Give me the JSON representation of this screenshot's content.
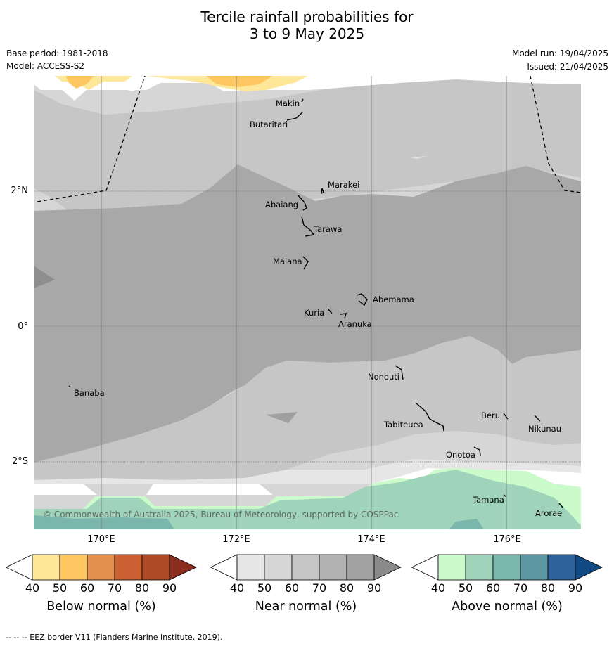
{
  "title_line1": "Tercile rainfall probabilities for",
  "title_line2": "3 to 9 May 2025",
  "base_period": "Base period: 1981-2018",
  "model": "Model: ACCESS-S2",
  "model_run": "Model run: 19/04/2025",
  "issued": "Issued: 21/04/2025",
  "copyright": "© Commonwealth of Australia 2025, Bureau of Meteorology, supported by COSPPac",
  "lat_labels": [
    "2°N",
    "0°",
    "2°S"
  ],
  "lon_labels": [
    "170°E",
    "172°E",
    "174°E",
    "176°E"
  ],
  "places": [
    "Makin",
    "Butaritari",
    "Marakei",
    "Abaiang",
    "Tarawa",
    "Maiana",
    "Abemama",
    "Kuria",
    "Aranuka",
    "Nonouti",
    "Banaba",
    "Tabiteuea",
    "Beru",
    "Nikunau",
    "Onotoa",
    "Tamana",
    "Arorae"
  ],
  "colorbars": {
    "below": {
      "label": "Below normal (%)",
      "ticks": [
        "40",
        "50",
        "60",
        "70",
        "80",
        "90"
      ],
      "colors": [
        "#ffffff",
        "#fee799",
        "#fec762",
        "#e2904c",
        "#cd6032",
        "#b04b27",
        "#8b2d1e"
      ]
    },
    "near": {
      "label": "Near normal (%)",
      "ticks": [
        "40",
        "50",
        "60",
        "70",
        "80",
        "90"
      ],
      "colors": [
        "#ffffff",
        "#e6e6e6",
        "#d6d6d6",
        "#c6c6c6",
        "#b2b2b2",
        "#a2a2a2",
        "#8a8a8a"
      ]
    },
    "above": {
      "label": "Above normal (%)",
      "ticks": [
        "40",
        "50",
        "60",
        "70",
        "80",
        "90"
      ],
      "colors": [
        "#ffffff",
        "#cbfacb",
        "#9fd3ba",
        "#7bb6ad",
        "#5d97a3",
        "#2e629a",
        "#114a82"
      ]
    }
  },
  "footer": "--  --  -- EEZ border V11 (Flanders Marine Institute, 2019)."
}
